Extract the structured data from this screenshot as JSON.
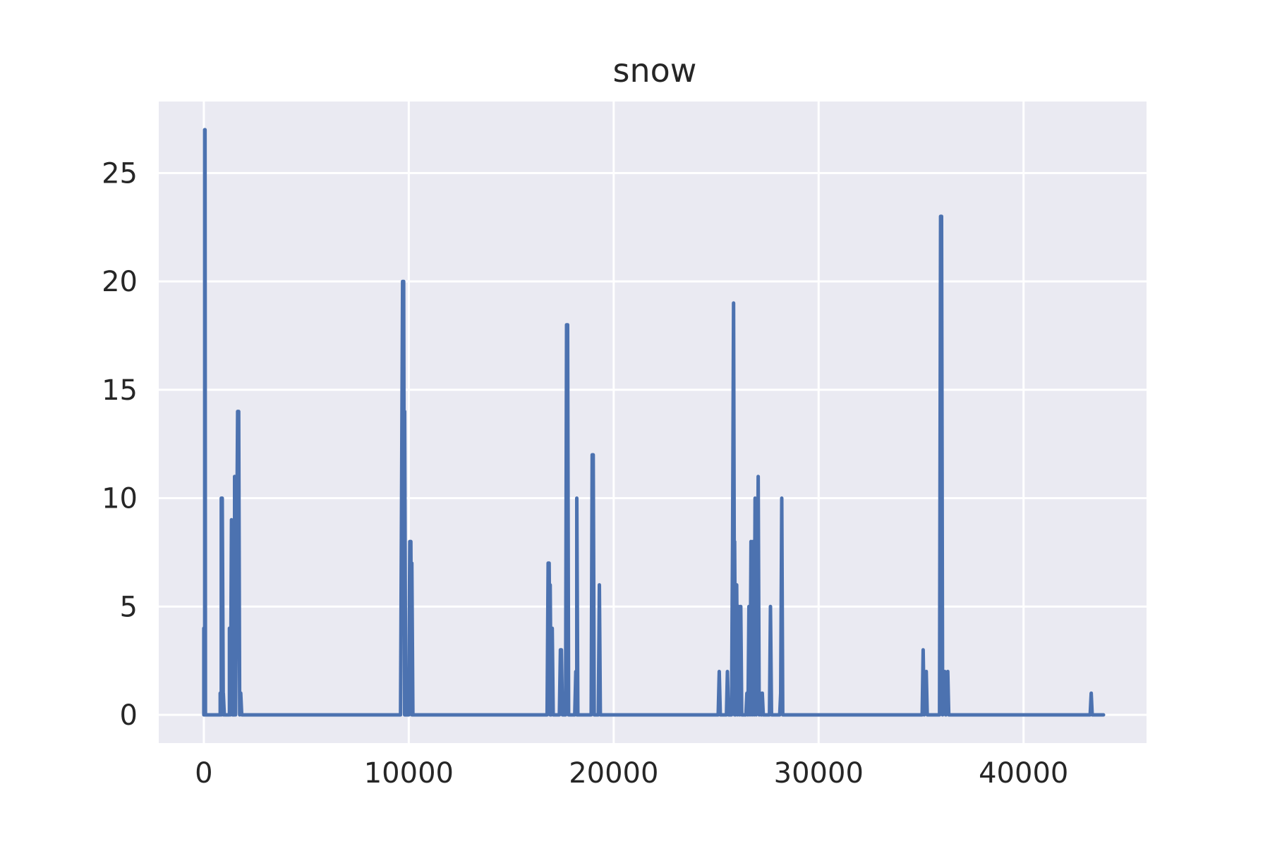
{
  "chart_data": {
    "type": "line",
    "title": "snow",
    "xlabel": "",
    "ylabel": "",
    "xlim": [
      -2200,
      46000
    ],
    "ylim": [
      -1.3,
      28.3
    ],
    "xticks": [
      0,
      10000,
      20000,
      30000,
      40000
    ],
    "xtick_labels": [
      "0",
      "10000",
      "20000",
      "30000",
      "40000"
    ],
    "yticks": [
      0,
      5,
      10,
      15,
      20,
      25
    ],
    "ytick_labels": [
      "0",
      "5",
      "10",
      "15",
      "20",
      "25"
    ],
    "grid": true,
    "background": "#eaeaf2",
    "grid_color": "#ffffff",
    "line_color": "#4c72b0",
    "series": [
      {
        "points": [
          [
            0,
            0
          ],
          [
            0,
            4
          ],
          [
            0,
            0
          ],
          [
            40,
            0
          ],
          [
            40,
            27
          ],
          [
            60,
            27
          ],
          [
            80,
            0
          ],
          [
            800,
            0
          ],
          [
            800,
            1
          ],
          [
            850,
            0
          ],
          [
            850,
            10
          ],
          [
            900,
            10
          ],
          [
            950,
            0
          ],
          [
            950,
            1
          ],
          [
            1000,
            0
          ],
          [
            1250,
            0
          ],
          [
            1250,
            4
          ],
          [
            1300,
            0
          ],
          [
            1350,
            9
          ],
          [
            1400,
            0
          ],
          [
            1500,
            0
          ],
          [
            1500,
            11
          ],
          [
            1550,
            0
          ],
          [
            1650,
            14
          ],
          [
            1700,
            14
          ],
          [
            1750,
            0
          ],
          [
            1800,
            1
          ],
          [
            1850,
            0
          ],
          [
            9600,
            0
          ],
          [
            9700,
            20
          ],
          [
            9750,
            20
          ],
          [
            9800,
            0
          ],
          [
            9800,
            14
          ],
          [
            9850,
            0
          ],
          [
            10000,
            0
          ],
          [
            10050,
            8
          ],
          [
            10100,
            8
          ],
          [
            10150,
            0
          ],
          [
            10150,
            7
          ],
          [
            10200,
            0
          ],
          [
            16750,
            0
          ],
          [
            16800,
            7
          ],
          [
            16850,
            7
          ],
          [
            16900,
            0
          ],
          [
            16900,
            6
          ],
          [
            16950,
            0
          ],
          [
            17000,
            4
          ],
          [
            17050,
            0
          ],
          [
            17350,
            0
          ],
          [
            17400,
            3
          ],
          [
            17450,
            3
          ],
          [
            17500,
            0
          ],
          [
            17650,
            0
          ],
          [
            17700,
            18
          ],
          [
            17750,
            18
          ],
          [
            17800,
            0
          ],
          [
            18100,
            0
          ],
          [
            18150,
            2
          ],
          [
            18200,
            0
          ],
          [
            18200,
            10
          ],
          [
            18250,
            0
          ],
          [
            18900,
            0
          ],
          [
            18950,
            12
          ],
          [
            19000,
            12
          ],
          [
            19050,
            0
          ],
          [
            19250,
            0
          ],
          [
            19300,
            6
          ],
          [
            19350,
            0
          ],
          [
            25100,
            0
          ],
          [
            25150,
            2
          ],
          [
            25200,
            0
          ],
          [
            25500,
            0
          ],
          [
            25550,
            2
          ],
          [
            25600,
            0
          ],
          [
            25750,
            0
          ],
          [
            25800,
            8
          ],
          [
            25850,
            19
          ],
          [
            25900,
            0
          ],
          [
            25900,
            8
          ],
          [
            25950,
            0
          ],
          [
            26000,
            6
          ],
          [
            26050,
            0
          ],
          [
            26100,
            5
          ],
          [
            26150,
            0
          ],
          [
            26200,
            5
          ],
          [
            26250,
            0
          ],
          [
            26450,
            0
          ],
          [
            26500,
            1
          ],
          [
            26550,
            0
          ],
          [
            26600,
            5
          ],
          [
            26650,
            0
          ],
          [
            26700,
            8
          ],
          [
            26750,
            0
          ],
          [
            26800,
            8
          ],
          [
            26850,
            0
          ],
          [
            26900,
            10
          ],
          [
            26950,
            0
          ],
          [
            27000,
            3
          ],
          [
            27050,
            11
          ],
          [
            27100,
            0
          ],
          [
            27150,
            1
          ],
          [
            27200,
            0
          ],
          [
            27250,
            1
          ],
          [
            27300,
            0
          ],
          [
            27600,
            0
          ],
          [
            27650,
            5
          ],
          [
            27700,
            0
          ],
          [
            28100,
            0
          ],
          [
            28150,
            1
          ],
          [
            28200,
            10
          ],
          [
            28250,
            0
          ],
          [
            35050,
            0
          ],
          [
            35100,
            3
          ],
          [
            35150,
            0
          ],
          [
            35250,
            2
          ],
          [
            35300,
            0
          ],
          [
            35900,
            0
          ],
          [
            35950,
            23
          ],
          [
            36000,
            23
          ],
          [
            36050,
            0
          ],
          [
            36150,
            2
          ],
          [
            36200,
            0
          ],
          [
            36300,
            2
          ],
          [
            36350,
            0
          ],
          [
            43250,
            0
          ],
          [
            43300,
            1
          ],
          [
            43350,
            0
          ],
          [
            43900,
            0
          ]
        ]
      }
    ]
  }
}
